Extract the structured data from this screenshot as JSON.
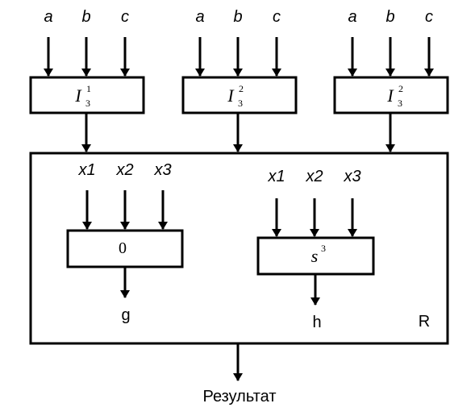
{
  "inputs": {
    "group1": [
      "a",
      "b",
      "c"
    ],
    "group2": [
      "a",
      "b",
      "c"
    ],
    "group3": [
      "a",
      "b",
      "c"
    ]
  },
  "top_blocks": [
    {
      "base": "I",
      "sup": "1",
      "sub": "3"
    },
    {
      "base": "I",
      "sup": "2",
      "sub": "3"
    },
    {
      "base": "I",
      "sup": "2",
      "sub": "3"
    }
  ],
  "inner_left": {
    "inputs": [
      "x1",
      "x2",
      "x3"
    ],
    "label": "0",
    "output": "g"
  },
  "inner_right": {
    "inputs": [
      "x1",
      "x2",
      "x3"
    ],
    "base": "s",
    "sup": "3",
    "output": "h"
  },
  "container_label": "R",
  "result_label": "Результат"
}
